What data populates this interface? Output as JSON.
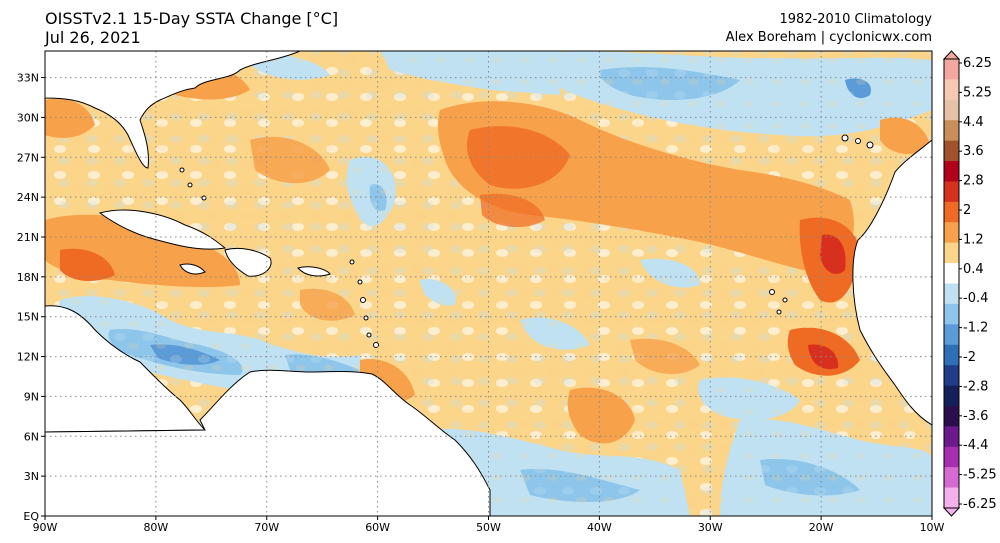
{
  "header": {
    "title_line1": "OISSTv2.1 15-Day SSTA Change [°C]",
    "title_line2": "Jul 26, 2021",
    "climatology": "1982-2010 Climatology",
    "author": "Alex Boreham | cyclonicwx.com"
  },
  "map": {
    "lon_range": [
      -90,
      -10
    ],
    "lat_range": [
      0,
      35
    ],
    "lat_ticks": [
      "33N",
      "30N",
      "27N",
      "24N",
      "21N",
      "18N",
      "15N",
      "12N",
      "9N",
      "6N",
      "3N",
      "EQ"
    ],
    "lon_ticks": [
      "90W",
      "80W",
      "70W",
      "60W",
      "50W",
      "40W",
      "30W",
      "20W",
      "10W"
    ],
    "gridlines": true
  },
  "colorbar": {
    "labels": [
      "6.25",
      "5.25",
      "4.4",
      "3.6",
      "2.8",
      "2",
      "1.2",
      "0.4",
      "-0.4",
      "-1.2",
      "-2",
      "-2.8",
      "-3.6",
      "-4.4",
      "-5.25",
      "-6.25"
    ],
    "colors": [
      "#f2a8a0",
      "#f7c9b3",
      "#e6c2a6",
      "#c98f5a",
      "#a0522d",
      "#b3001b",
      "#d7301f",
      "#ef6a23",
      "#f7a14a",
      "#fbd58a",
      "#ffffff",
      "#bfe1f2",
      "#8ec5ea",
      "#5a9bd8",
      "#2f6fb8",
      "#1f3d8a",
      "#15205a",
      "#2b0f4d",
      "#6a1a8a",
      "#a52fb0",
      "#d76ad0",
      "#f2b0ec"
    ]
  }
}
